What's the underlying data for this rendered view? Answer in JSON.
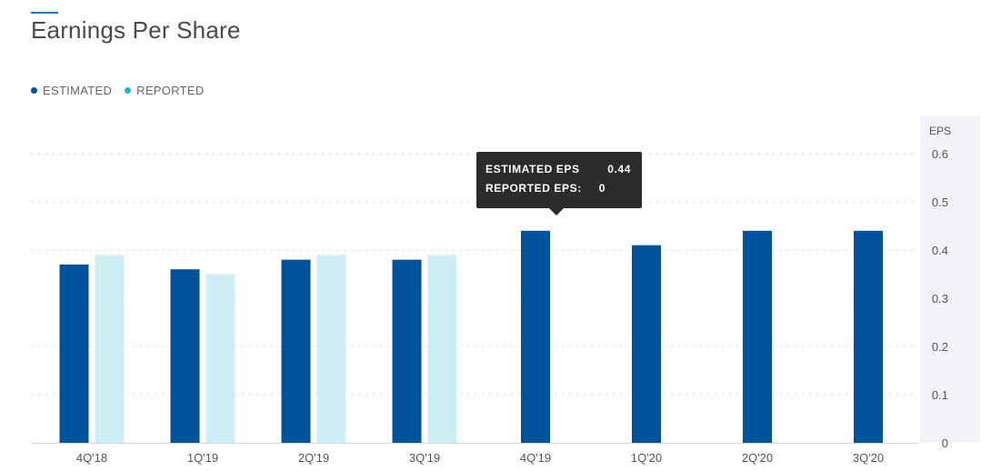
{
  "header": {
    "title": "Earnings Per Share"
  },
  "legend": {
    "estimated_label": "ESTIMATED",
    "reported_label": "REPORTED"
  },
  "colors": {
    "estimated": "#00529b",
    "reported": "#cdeef5",
    "reported_dot": "#1ab7d4",
    "axis_panel": "#f3f3f8",
    "tooltip_bg": "#2b2b2b"
  },
  "tooltip": {
    "row1_label": "ESTIMATED EPS",
    "row1_value": "0.44",
    "row2_label": "REPORTED EPS:",
    "row2_value": "0"
  },
  "chart_data": {
    "type": "bar",
    "title": "Earnings Per Share",
    "ylabel": "EPS",
    "xlabel": "",
    "ylim": [
      0,
      0.6
    ],
    "yticks": [
      0,
      0.1,
      0.2,
      0.3,
      0.4,
      0.5,
      0.6
    ],
    "ytick_labels": [
      "0",
      "0.1",
      "0.2",
      "0.3",
      "0.4",
      "0.5",
      "0.6"
    ],
    "categories": [
      "4Q'18",
      "1Q'19",
      "2Q'19",
      "3Q'19",
      "4Q'19",
      "1Q'20",
      "2Q'20",
      "3Q'20"
    ],
    "series": [
      {
        "name": "ESTIMATED",
        "values": [
          0.37,
          0.36,
          0.38,
          0.38,
          0.44,
          0.41,
          0.44,
          0.44
        ]
      },
      {
        "name": "REPORTED",
        "values": [
          0.39,
          0.35,
          0.39,
          0.39,
          null,
          null,
          null,
          null
        ]
      }
    ],
    "grid": true,
    "legend_position": "top-left",
    "y_axis_position": "right"
  }
}
